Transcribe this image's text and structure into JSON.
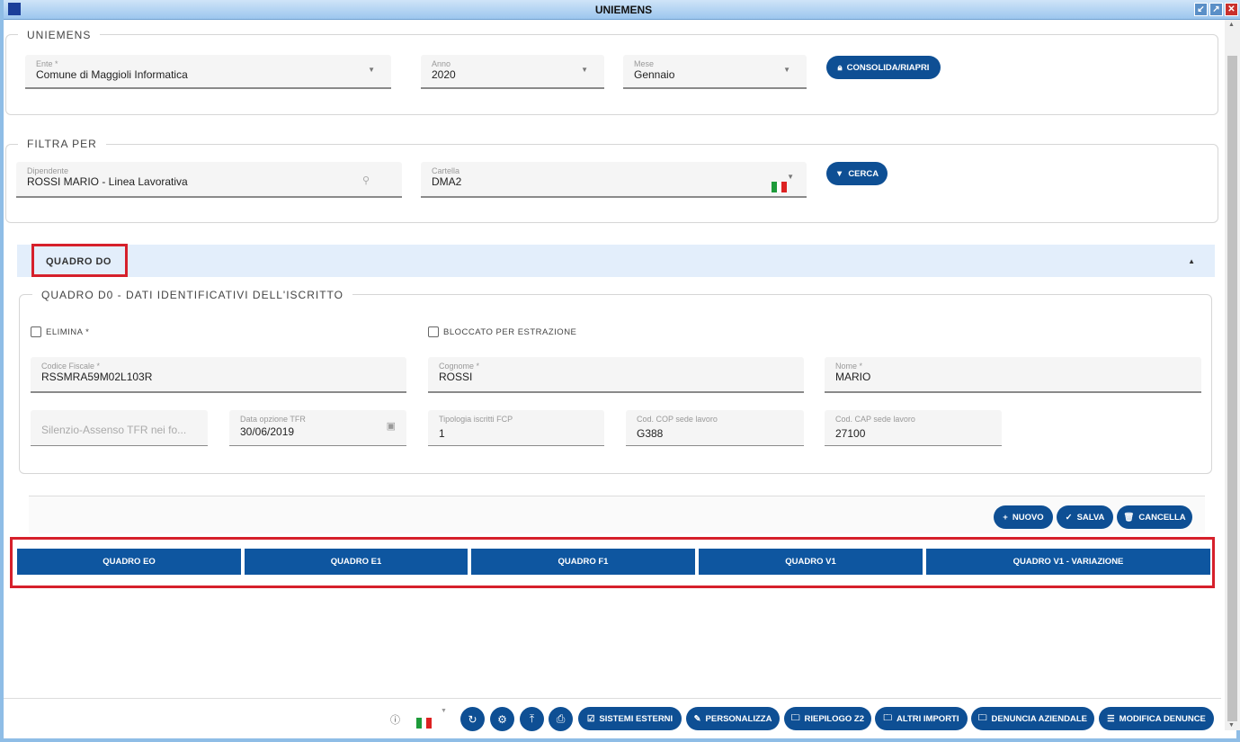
{
  "window": {
    "title": "UNIEMENS"
  },
  "uniemens": {
    "legend": "UNIEMENS",
    "ente": {
      "label": "Ente *",
      "value": "Comune di Maggioli Informatica"
    },
    "anno": {
      "label": "Anno",
      "value": "2020"
    },
    "mese": {
      "label": "Mese",
      "value": "Gennaio"
    },
    "consolida": "CONSOLIDA/RIAPRI"
  },
  "filtra": {
    "legend": "FILTRA PER",
    "dipendente": {
      "label": "Dipendente",
      "value": "ROSSI MARIO - Linea Lavorativa"
    },
    "cartella": {
      "label": "Cartella",
      "value": "DMA2"
    },
    "cerca": "CERCA"
  },
  "quadro": {
    "header": "QUADRO DO",
    "legend": "QUADRO D0 - DATI IDENTIFICATIVI DELL'ISCRITTO",
    "elimina": "ELIMINA *",
    "bloccato": "BLOCCATO PER ESTRAZIONE",
    "codice_fiscale": {
      "label": "Codice Fiscale *",
      "value": "RSSMRA59M02L103R"
    },
    "cognome": {
      "label": "Cognome *",
      "value": "ROSSI"
    },
    "nome": {
      "label": "Nome *",
      "value": "MARIO"
    },
    "silenzio": {
      "placeholder": "Silenzio-Assenso TFR nei fo..."
    },
    "data_opzione": {
      "label": "Data opzione TFR",
      "value": "30/06/2019"
    },
    "tipologia": {
      "label": "Tipologia iscritti FCP",
      "value": "1"
    },
    "cod_cop": {
      "label": "Cod. COP sede lavoro",
      "value": "G388"
    },
    "cod_cap": {
      "label": "Cod. CAP sede lavoro",
      "value": "27100"
    },
    "actions": {
      "nuovo": "NUOVO",
      "salva": "SALVA",
      "cancella": "CANCELLA"
    }
  },
  "tabs": [
    "QUADRO EO",
    "QUADRO E1",
    "QUADRO F1",
    "QUADRO V1",
    "QUADRO V1 - VARIAZIONE"
  ],
  "footer": {
    "buttons": [
      "SISTEMI ESTERNI",
      "PERSONALIZZA",
      "RIEPILOGO Z2",
      "ALTRI IMPORTI",
      "DENUNCIA AZIENDALE",
      "MODIFICA DENUNCE"
    ]
  },
  "colors": {
    "primary": "#0e4f94",
    "highlight": "#d6202b",
    "section_header": "#e3eefb"
  }
}
